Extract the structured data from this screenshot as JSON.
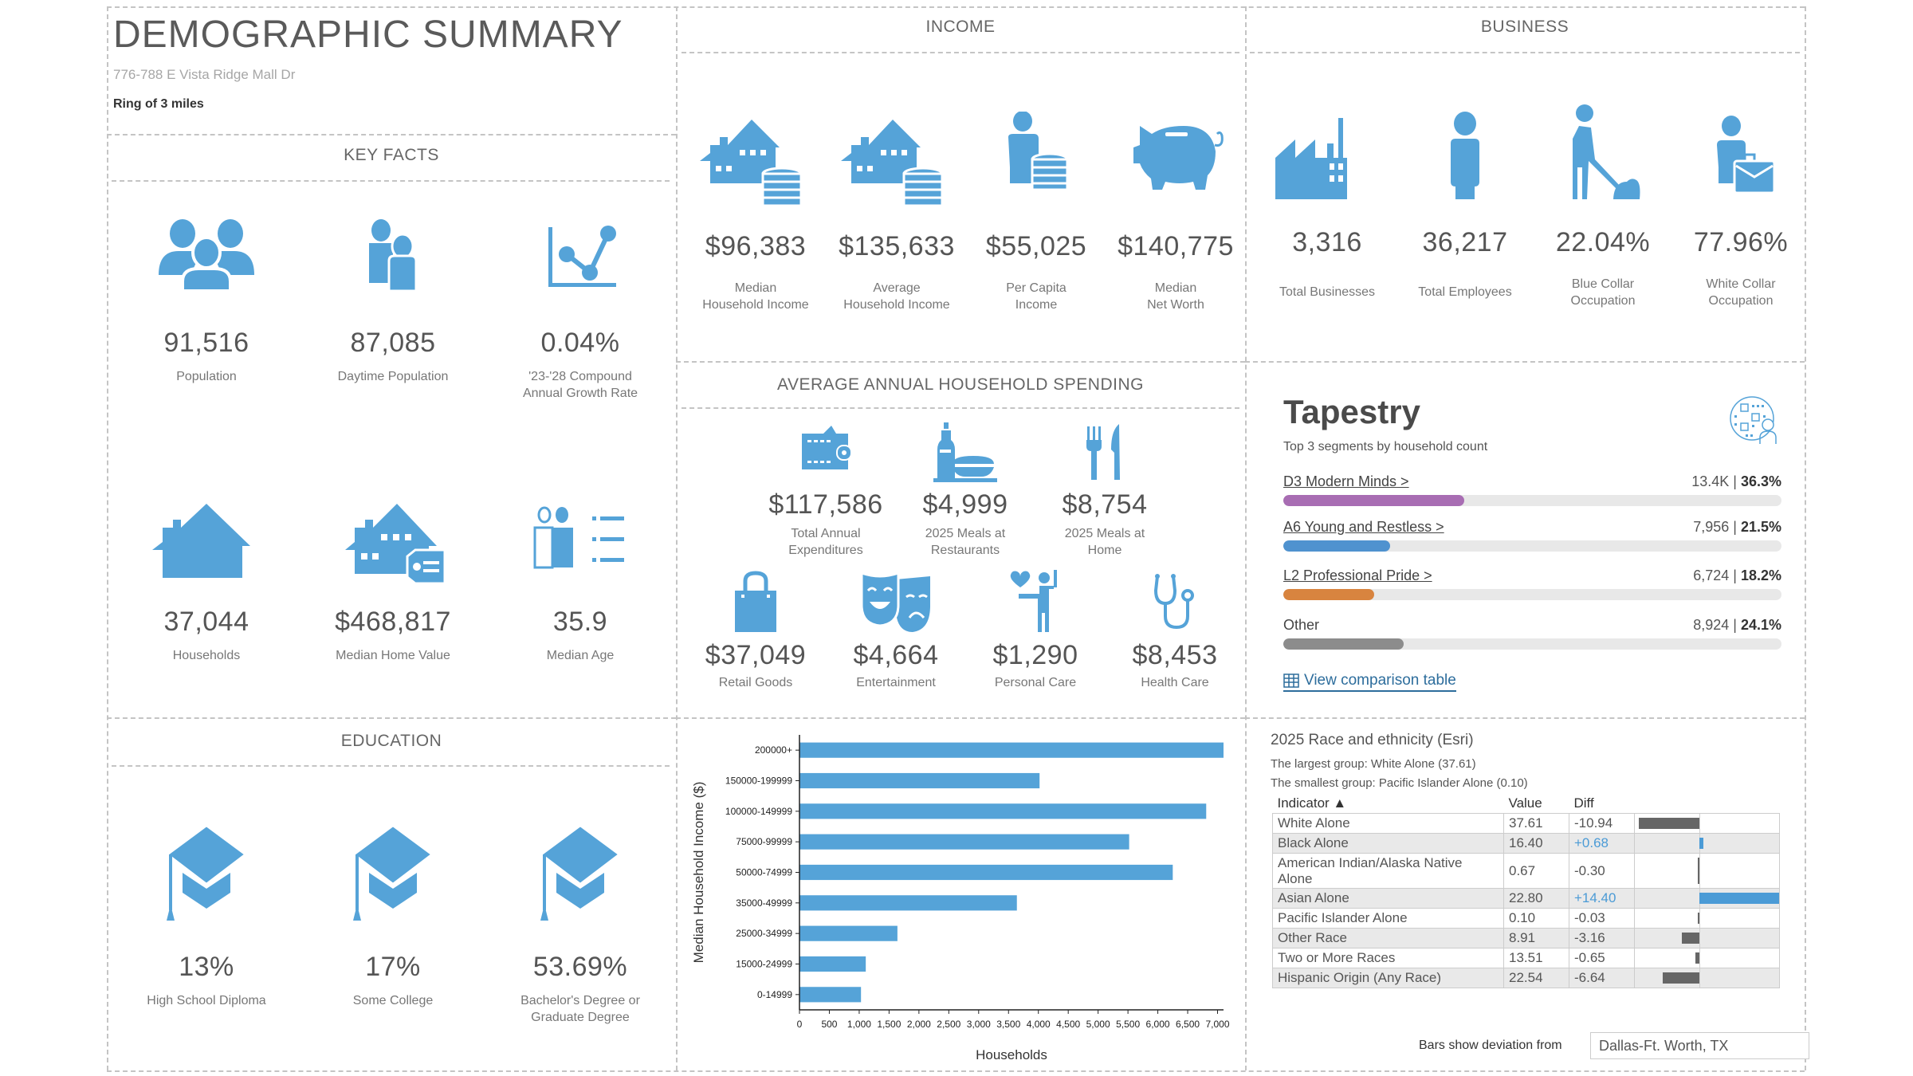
{
  "header": {
    "title": "DEMOGRAPHIC SUMMARY",
    "address": "776-788 E Vista Ridge Mall Dr",
    "ring": "Ring of 3 miles"
  },
  "key_facts": {
    "title": "KEY FACTS",
    "items": [
      {
        "icon": "people-group-icon",
        "value": "91,516",
        "label": "Population"
      },
      {
        "icon": "daytime-people-icon",
        "value": "87,085",
        "label": "Daytime Population"
      },
      {
        "icon": "growth-chart-icon",
        "value": "0.04%",
        "label": "'23-'28 Compound Annual Growth Rate"
      },
      {
        "icon": "house-icon",
        "value": "37,044",
        "label": "Households"
      },
      {
        "icon": "house-price-tag-icon",
        "value": "$468,817",
        "label": "Median Home Value"
      },
      {
        "icon": "people-list-icon",
        "value": "35.9",
        "label": "Median Age"
      }
    ]
  },
  "education": {
    "title": "EDUCATION",
    "items": [
      {
        "icon": "graduation-cap-icon",
        "value": "13%",
        "label": "High School Diploma"
      },
      {
        "icon": "graduation-cap-icon",
        "value": "17%",
        "label": "Some College"
      },
      {
        "icon": "graduation-cap-icon",
        "value": "53.69%",
        "label": "Bachelor's Degree or Graduate Degree"
      }
    ]
  },
  "income": {
    "title": "INCOME",
    "items": [
      {
        "icon": "house-coins-icon",
        "value": "$96,383",
        "label_1": "Median",
        "label_2": "Household Income"
      },
      {
        "icon": "house-coins-icon",
        "value": "$135,633",
        "label_1": "Average",
        "label_2": "Household Income"
      },
      {
        "icon": "person-coins-icon",
        "value": "$55,025",
        "label_1": "Per Capita",
        "label_2": "Income"
      },
      {
        "icon": "piggy-bank-icon",
        "value": "$140,775",
        "label_1": "Median",
        "label_2": "Net Worth"
      }
    ]
  },
  "spending": {
    "title": "AVERAGE ANNUAL HOUSEHOLD SPENDING",
    "items": [
      {
        "icon": "wallet-icon",
        "value": "$117,586",
        "label_1": "Total Annual",
        "label_2": "Expenditures"
      },
      {
        "icon": "restaurant-meal-icon",
        "value": "$4,999",
        "label_1": "2025 Meals at",
        "label_2": "Restaurants"
      },
      {
        "icon": "fork-knife-icon",
        "value": "$8,754",
        "label_1": "2025 Meals at",
        "label_2": "Home"
      },
      {
        "icon": "shopping-bag-icon",
        "value": "$37,049",
        "label_1": "Retail Goods",
        "label_2": ""
      },
      {
        "icon": "theater-masks-icon",
        "value": "$4,664",
        "label_1": "Entertainment",
        "label_2": ""
      },
      {
        "icon": "personal-care-icon",
        "value": "$1,290",
        "label_1": "Personal Care",
        "label_2": ""
      },
      {
        "icon": "stethoscope-icon",
        "value": "$8,453",
        "label_1": "Health Care",
        "label_2": ""
      }
    ]
  },
  "business": {
    "title": "BUSINESS",
    "items": [
      {
        "icon": "factory-icon",
        "value": "3,316",
        "label_1": "Total Businesses",
        "label_2": ""
      },
      {
        "icon": "person-icon",
        "value": "36,217",
        "label_1": "Total Employees",
        "label_2": ""
      },
      {
        "icon": "blue-collar-worker-icon",
        "value": "22.04%",
        "label_1": "Blue Collar",
        "label_2": "Occupation"
      },
      {
        "icon": "briefcase-person-icon",
        "value": "77.96%",
        "label_1": "White Collar",
        "label_2": "Occupation"
      }
    ]
  },
  "tapestry": {
    "title": "Tapestry",
    "subtitle": "Top 3 segments by household count",
    "segments": [
      {
        "name": "D3 Modern Minds >",
        "count": "13.4K",
        "pct_label": "36.3%",
        "pct": 36.3,
        "color": "#a86db3",
        "link": true
      },
      {
        "name": "A6 Young and Restless >",
        "count": "7,956",
        "pct_label": "21.5%",
        "pct": 21.5,
        "color": "#4f92cf",
        "link": true
      },
      {
        "name": "L2 Professional Pride >",
        "count": "6,724",
        "pct_label": "18.2%",
        "pct": 18.2,
        "color": "#d8843f",
        "link": true
      },
      {
        "name": "Other",
        "count": "8,924",
        "pct_label": "24.1%",
        "pct": 24.1,
        "color": "#8c8c8c",
        "link": false
      }
    ],
    "view_link": "View comparison table"
  },
  "race": {
    "title": "2025 Race and ethnicity (Esri)",
    "largest": "The largest group: White Alone (37.61)",
    "smallest": "The smallest group: Pacific Islander Alone (0.10)",
    "columns": [
      "Indicator ▲",
      "Value",
      "Diff"
    ],
    "rows": [
      {
        "indicator": "White Alone",
        "value": "37.61",
        "diff": "-10.94",
        "diff_num": -10.94
      },
      {
        "indicator": "Black Alone",
        "value": "16.40",
        "diff": "+0.68",
        "diff_num": 0.68
      },
      {
        "indicator": "American Indian/Alaska Native Alone",
        "value": "0.67",
        "diff": "-0.30",
        "diff_num": -0.3
      },
      {
        "indicator": "Asian Alone",
        "value": "22.80",
        "diff": "+14.40",
        "diff_num": 14.4
      },
      {
        "indicator": "Pacific Islander Alone",
        "value": "0.10",
        "diff": "-0.03",
        "diff_num": -0.03
      },
      {
        "indicator": "Other Race",
        "value": "8.91",
        "diff": "-3.16",
        "diff_num": -3.16
      },
      {
        "indicator": "Two or More Races",
        "value": "13.51",
        "diff": "-0.65",
        "diff_num": -0.65
      },
      {
        "indicator": "Hispanic Origin (Any Race)",
        "value": "22.54",
        "diff": "-6.64",
        "diff_num": -6.64
      }
    ],
    "deviation_label": "Bars show deviation from",
    "deviation_value": "Dallas-Ft. Worth, TX",
    "pos_color": "#4b9bd6",
    "neg_color": "#666666"
  },
  "chart_data": {
    "type": "bar",
    "orientation": "horizontal",
    "title": "",
    "xlabel": "Households",
    "ylabel": "Median Household Income ($)",
    "categories": [
      "200000+",
      "150000-199999",
      "100000-149999",
      "75000-99999",
      "50000-74999",
      "35000-49999",
      "25000-34999",
      "15000-24999",
      "0-14999"
    ],
    "values": [
      7100,
      4020,
      6810,
      5520,
      6250,
      3640,
      1640,
      1110,
      1030
    ],
    "xlim": [
      0,
      7100
    ],
    "xticks": [
      0,
      500,
      1000,
      1500,
      2000,
      2500,
      3000,
      3500,
      4000,
      4500,
      5000,
      5500,
      6000,
      6500,
      7000
    ],
    "xtick_labels": [
      "0",
      "500",
      "1,000",
      "1,500",
      "2,000",
      "2,500",
      "3,000",
      "3,500",
      "4,000",
      "4,500",
      "5,000",
      "5,500",
      "6,000",
      "6,500",
      "7,000"
    ],
    "grid": false,
    "color": "#55a3d8"
  }
}
